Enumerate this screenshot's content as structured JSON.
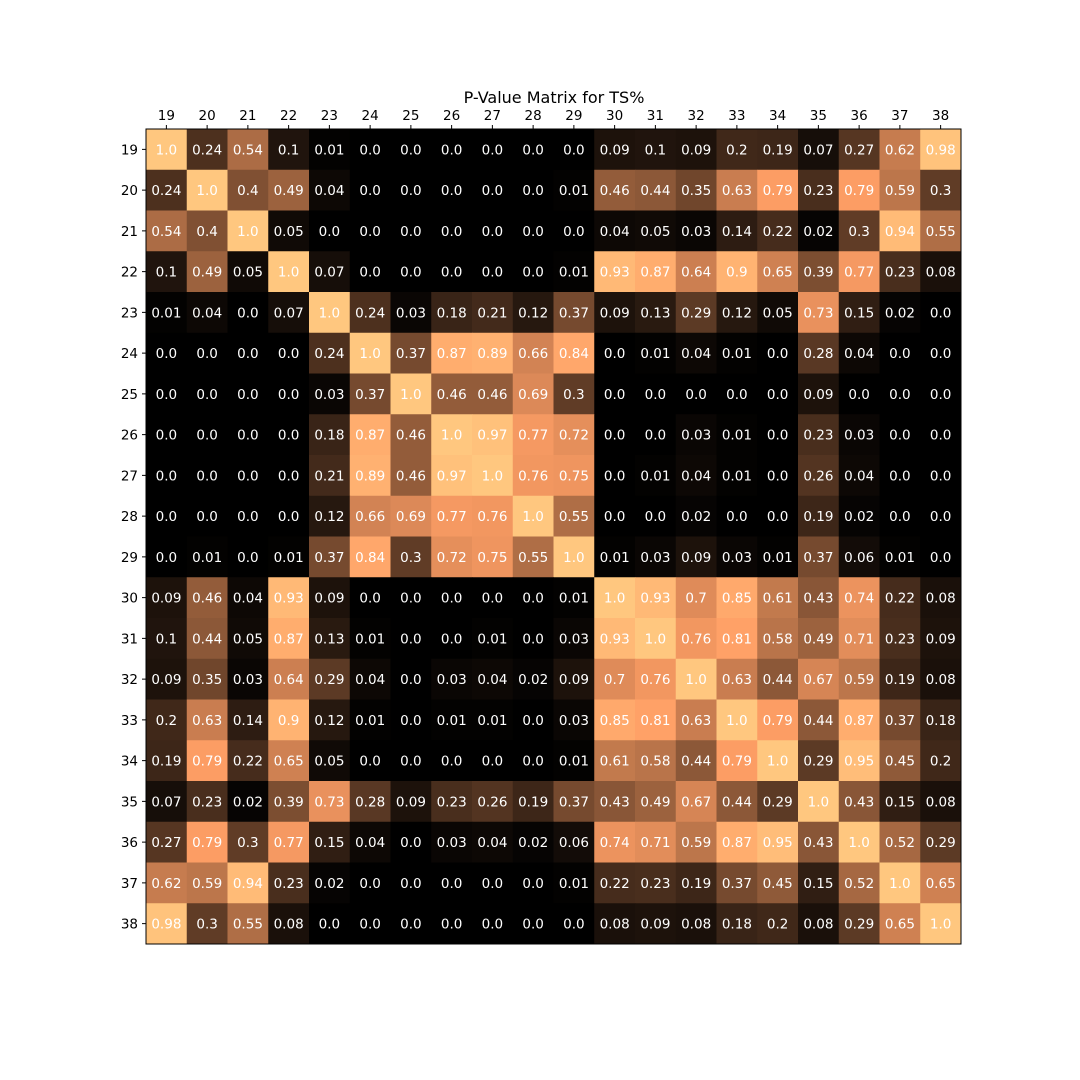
{
  "chart_data": {
    "type": "heatmap",
    "title": "P-Value Matrix for TS%",
    "colormap": "copper",
    "value_range": [
      0,
      1
    ],
    "x_labels": [
      "19",
      "20",
      "21",
      "22",
      "23",
      "24",
      "25",
      "26",
      "27",
      "28",
      "29",
      "30",
      "31",
      "32",
      "33",
      "34",
      "35",
      "36",
      "37",
      "38"
    ],
    "y_labels": [
      "19",
      "20",
      "21",
      "22",
      "23",
      "24",
      "25",
      "26",
      "27",
      "28",
      "29",
      "30",
      "31",
      "32",
      "33",
      "34",
      "35",
      "36",
      "37",
      "38"
    ],
    "x_tick_position": "top",
    "cell_text_color": "#ffffff",
    "matrix": [
      [
        1.0,
        0.24,
        0.54,
        0.1,
        0.01,
        0.0,
        0.0,
        0.0,
        0.0,
        0.0,
        0.0,
        0.09,
        0.1,
        0.09,
        0.2,
        0.19,
        0.07,
        0.27,
        0.62,
        0.98
      ],
      [
        0.24,
        1.0,
        0.4,
        0.49,
        0.04,
        0.0,
        0.0,
        0.0,
        0.0,
        0.0,
        0.01,
        0.46,
        0.44,
        0.35,
        0.63,
        0.79,
        0.23,
        0.79,
        0.59,
        0.3
      ],
      [
        0.54,
        0.4,
        1.0,
        0.05,
        0.0,
        0.0,
        0.0,
        0.0,
        0.0,
        0.0,
        0.0,
        0.04,
        0.05,
        0.03,
        0.14,
        0.22,
        0.02,
        0.3,
        0.94,
        0.55
      ],
      [
        0.1,
        0.49,
        0.05,
        1.0,
        0.07,
        0.0,
        0.0,
        0.0,
        0.0,
        0.0,
        0.01,
        0.93,
        0.87,
        0.64,
        0.9,
        0.65,
        0.39,
        0.77,
        0.23,
        0.08
      ],
      [
        0.01,
        0.04,
        0.0,
        0.07,
        1.0,
        0.24,
        0.03,
        0.18,
        0.21,
        0.12,
        0.37,
        0.09,
        0.13,
        0.29,
        0.12,
        0.05,
        0.73,
        0.15,
        0.02,
        0.0
      ],
      [
        0.0,
        0.0,
        0.0,
        0.0,
        0.24,
        1.0,
        0.37,
        0.87,
        0.89,
        0.66,
        0.84,
        0.0,
        0.01,
        0.04,
        0.01,
        0.0,
        0.28,
        0.04,
        0.0,
        0.0
      ],
      [
        0.0,
        0.0,
        0.0,
        0.0,
        0.03,
        0.37,
        1.0,
        0.46,
        0.46,
        0.69,
        0.3,
        0.0,
        0.0,
        0.0,
        0.0,
        0.0,
        0.09,
        0.0,
        0.0,
        0.0
      ],
      [
        0.0,
        0.0,
        0.0,
        0.0,
        0.18,
        0.87,
        0.46,
        1.0,
        0.97,
        0.77,
        0.72,
        0.0,
        0.0,
        0.03,
        0.01,
        0.0,
        0.23,
        0.03,
        0.0,
        0.0
      ],
      [
        0.0,
        0.0,
        0.0,
        0.0,
        0.21,
        0.89,
        0.46,
        0.97,
        1.0,
        0.76,
        0.75,
        0.0,
        0.01,
        0.04,
        0.01,
        0.0,
        0.26,
        0.04,
        0.0,
        0.0
      ],
      [
        0.0,
        0.0,
        0.0,
        0.0,
        0.12,
        0.66,
        0.69,
        0.77,
        0.76,
        1.0,
        0.55,
        0.0,
        0.0,
        0.02,
        0.0,
        0.0,
        0.19,
        0.02,
        0.0,
        0.0
      ],
      [
        0.0,
        0.01,
        0.0,
        0.01,
        0.37,
        0.84,
        0.3,
        0.72,
        0.75,
        0.55,
        1.0,
        0.01,
        0.03,
        0.09,
        0.03,
        0.01,
        0.37,
        0.06,
        0.01,
        0.0
      ],
      [
        0.09,
        0.46,
        0.04,
        0.93,
        0.09,
        0.0,
        0.0,
        0.0,
        0.0,
        0.0,
        0.01,
        1.0,
        0.93,
        0.7,
        0.85,
        0.61,
        0.43,
        0.74,
        0.22,
        0.08
      ],
      [
        0.1,
        0.44,
        0.05,
        0.87,
        0.13,
        0.01,
        0.0,
        0.0,
        0.01,
        0.0,
        0.03,
        0.93,
        1.0,
        0.76,
        0.81,
        0.58,
        0.49,
        0.71,
        0.23,
        0.09
      ],
      [
        0.09,
        0.35,
        0.03,
        0.64,
        0.29,
        0.04,
        0.0,
        0.03,
        0.04,
        0.02,
        0.09,
        0.7,
        0.76,
        1.0,
        0.63,
        0.44,
        0.67,
        0.59,
        0.19,
        0.08
      ],
      [
        0.2,
        0.63,
        0.14,
        0.9,
        0.12,
        0.01,
        0.0,
        0.01,
        0.01,
        0.0,
        0.03,
        0.85,
        0.81,
        0.63,
        1.0,
        0.79,
        0.44,
        0.87,
        0.37,
        0.18
      ],
      [
        0.19,
        0.79,
        0.22,
        0.65,
        0.05,
        0.0,
        0.0,
        0.0,
        0.0,
        0.0,
        0.01,
        0.61,
        0.58,
        0.44,
        0.79,
        1.0,
        0.29,
        0.95,
        0.45,
        0.2
      ],
      [
        0.07,
        0.23,
        0.02,
        0.39,
        0.73,
        0.28,
        0.09,
        0.23,
        0.26,
        0.19,
        0.37,
        0.43,
        0.49,
        0.67,
        0.44,
        0.29,
        1.0,
        0.43,
        0.15,
        0.08
      ],
      [
        0.27,
        0.79,
        0.3,
        0.77,
        0.15,
        0.04,
        0.0,
        0.03,
        0.04,
        0.02,
        0.06,
        0.74,
        0.71,
        0.59,
        0.87,
        0.95,
        0.43,
        1.0,
        0.52,
        0.29
      ],
      [
        0.62,
        0.59,
        0.94,
        0.23,
        0.02,
        0.0,
        0.0,
        0.0,
        0.0,
        0.0,
        0.01,
        0.22,
        0.23,
        0.19,
        0.37,
        0.45,
        0.15,
        0.52,
        1.0,
        0.65
      ],
      [
        0.98,
        0.3,
        0.55,
        0.08,
        0.0,
        0.0,
        0.0,
        0.0,
        0.0,
        0.0,
        0.0,
        0.08,
        0.09,
        0.08,
        0.18,
        0.2,
        0.08,
        0.29,
        0.65,
        1.0
      ]
    ]
  }
}
